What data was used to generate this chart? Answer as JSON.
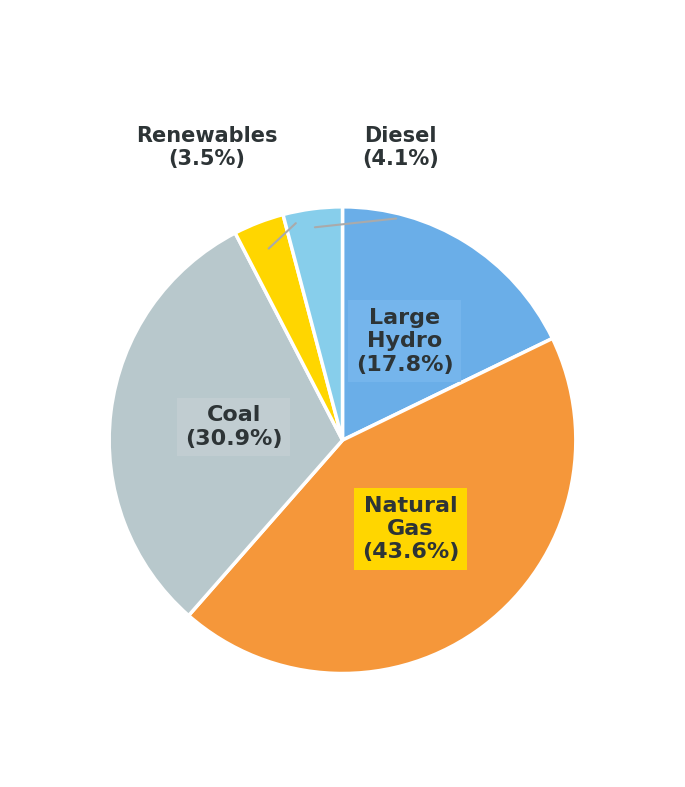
{
  "labels": [
    "Large Hydro",
    "Natural Gas",
    "Coal",
    "Renewables",
    "Diesel"
  ],
  "values": [
    17.8,
    43.6,
    30.9,
    3.5,
    4.1
  ],
  "colors": [
    "#6aaee8",
    "#f5973a",
    "#b8c8cc",
    "#ffd600",
    "#87ceeb"
  ],
  "startangle": 90,
  "text_color": "#2d3436",
  "background_color": "#ffffff",
  "large_hydro_box_color": "#7ab8ee",
  "coal_box_color": "#c5d0d4",
  "natural_gas_box_color": "#ffd600",
  "connector_color": "#aaaaaa",
  "font_size_inner": 16,
  "font_size_outer": 15
}
